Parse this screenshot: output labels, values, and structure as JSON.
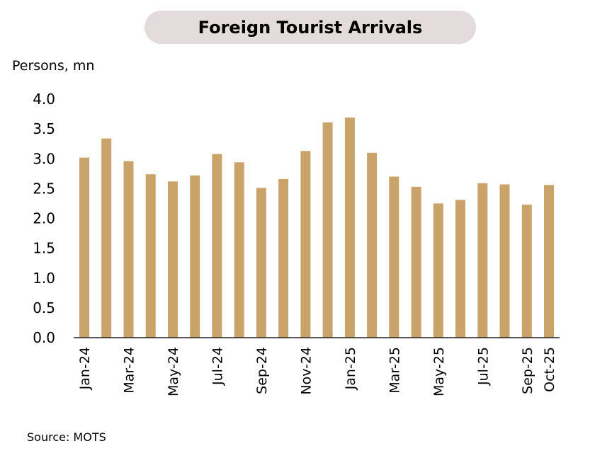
{
  "chart_data": {
    "type": "bar",
    "title": "Foreign Tourist Arrivals",
    "ylabel": "Persons, mn",
    "source": "Source: MOTS",
    "ylim": [
      0,
      4.0
    ],
    "yticks": [
      "0.0",
      "0.5",
      "1.0",
      "1.5",
      "2.0",
      "2.5",
      "3.0",
      "3.5",
      "4.0"
    ],
    "bar_color": "#c9a36a",
    "categories": [
      "Jan-24",
      "Feb-24",
      "Mar-24",
      "Apr-24",
      "May-24",
      "Jun-24",
      "Jul-24",
      "Aug-24",
      "Sep-24",
      "Oct-24",
      "Nov-24",
      "Dec-24",
      "Jan-25",
      "Feb-25",
      "Mar-25",
      "Apr-25",
      "May-25",
      "Jun-25",
      "Jul-25",
      "Aug-25",
      "Sep-25",
      "Oct-25"
    ],
    "values": [
      3.02,
      3.34,
      2.96,
      2.74,
      2.62,
      2.72,
      3.08,
      2.94,
      2.51,
      2.66,
      3.13,
      3.61,
      3.69,
      3.1,
      2.7,
      2.53,
      2.25,
      2.31,
      2.59,
      2.57,
      2.23,
      2.56
    ],
    "xtick_labels": [
      "Jan-24",
      "",
      "Mar-24",
      "",
      "May-24",
      "",
      "Jul-24",
      "",
      "Sep-24",
      "",
      "Nov-24",
      "",
      "Jan-25",
      "",
      "Mar-25",
      "",
      "May-25",
      "",
      "Jul-25",
      "",
      "Sep-25",
      "Oct-25"
    ]
  }
}
